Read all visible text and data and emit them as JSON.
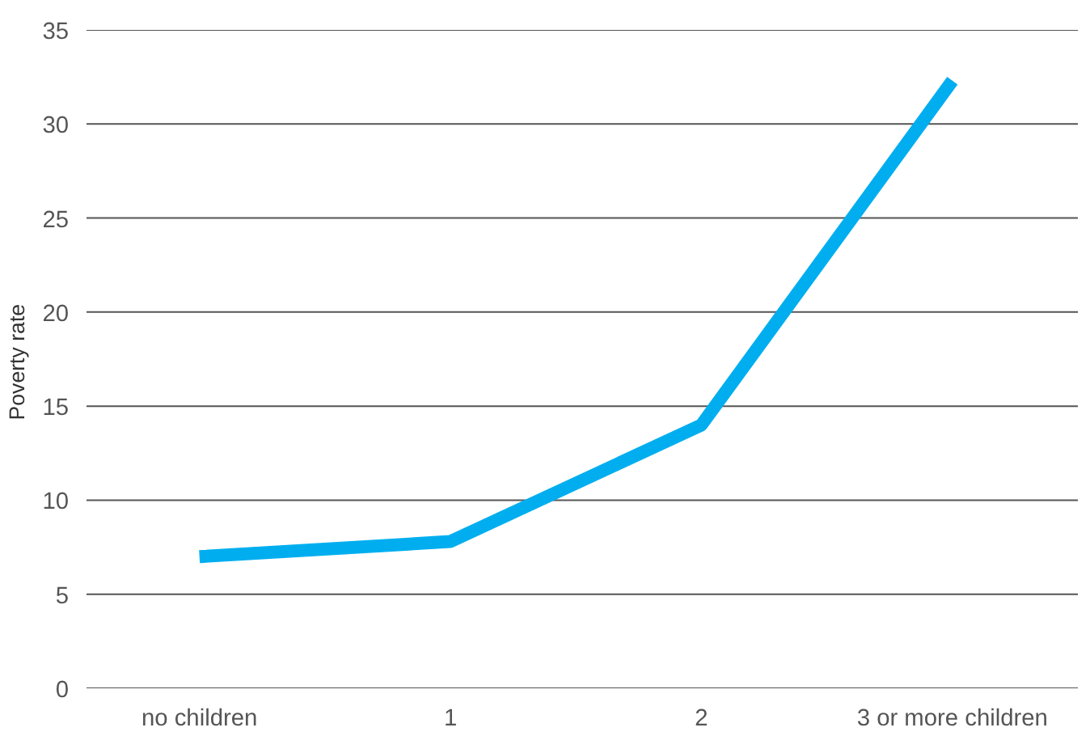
{
  "chart_data": {
    "type": "line",
    "ylabel": "Poverty  rate",
    "categories": [
      "no children",
      "1",
      "2",
      "3 or more children"
    ],
    "series": [
      {
        "color": "#00aeef",
        "values": [
          7.0,
          7.8,
          14.0,
          32.3
        ]
      }
    ],
    "ylim": [
      0,
      35
    ],
    "yticks": [
      0,
      5,
      10,
      15,
      20,
      25,
      30,
      35
    ],
    "grid": "y",
    "marker": "none",
    "line_style": "solid"
  }
}
